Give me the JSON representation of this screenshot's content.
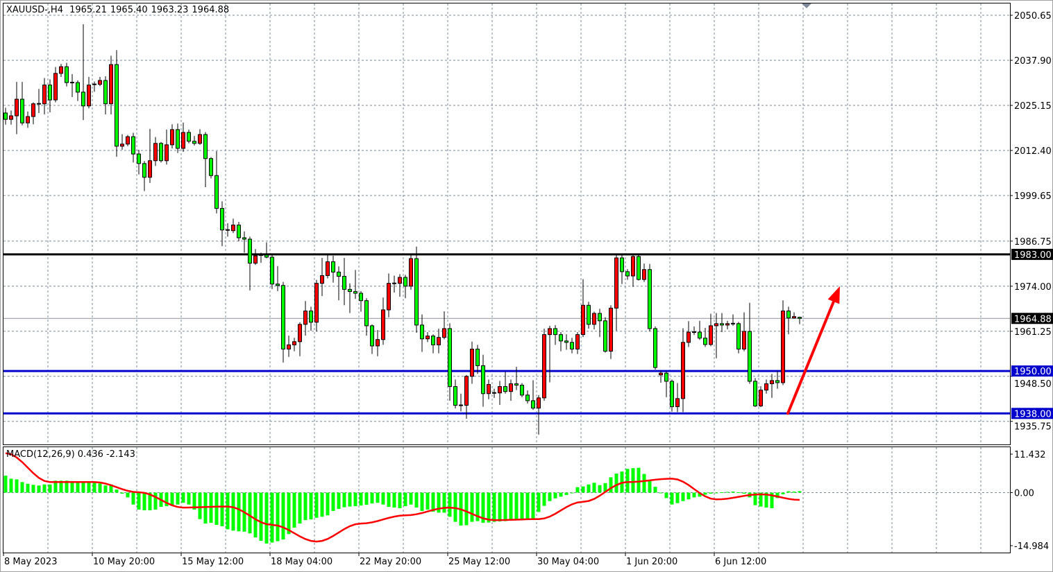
{
  "header": {
    "symbol": "XAUUSD-,H4",
    "open": "1965.21",
    "high": "1965.40",
    "low": "1963.23",
    "close": "1964.88"
  },
  "macd_header": {
    "label": "MACD(12,26,9)",
    "main": "0.436",
    "signal": "-2.143"
  },
  "colors": {
    "bull_candle": "#ff0000",
    "bear_candle": "#00ff00",
    "histogram": "#00ff00",
    "signal_line": "#ff0000",
    "resistance_line": "#000000",
    "support_line": "#0000cc",
    "arrow": "#ff0000",
    "grid": "#778899"
  },
  "chart_data": [
    {
      "type": "candlestick",
      "title": "",
      "ylim": [
        1929.2,
        2054.0
      ],
      "grid": true,
      "price_ticks": [
        "2050.65",
        "2037.90",
        "2025.15",
        "2012.40",
        "1999.65",
        "1986.75",
        "1974.00",
        "1961.25",
        "1948.50",
        "1935.75"
      ],
      "time_ticks": [
        "8 May 2023",
        "10 May 20:00",
        "15 May 12:00",
        "18 May 04:00",
        "22 May 20:00",
        "25 May 12:00",
        "30 May 04:00",
        "1 Jun 20:00",
        "6 Jun 12:00"
      ],
      "horizontal_lines": [
        {
          "price": 1983.0,
          "label": "1983.00",
          "color": "#000000"
        },
        {
          "price": 1950.0,
          "label": "1950.00",
          "color": "#0000cc"
        },
        {
          "price": 1938.0,
          "label": "1938.00",
          "color": "#0000cc"
        }
      ],
      "current_price": {
        "price": 1964.88,
        "label": "1964.88"
      },
      "arrow": {
        "from_bar": 141,
        "from_price": 1938.0,
        "to_bar": 150,
        "to_price": 1974.0,
        "color": "#ff0000"
      },
      "candles_ohlc": [
        [
          2023.0,
          2024.5,
          2019.7,
          2021.2
        ],
        [
          2021.2,
          2023.7,
          2019.7,
          2022.2
        ],
        [
          2022.2,
          2031.8,
          2017.0,
          2026.9
        ],
        [
          2026.9,
          2031.8,
          2019.5,
          2020.2
        ],
        [
          2020.2,
          2023.4,
          2018.8,
          2022.0
        ],
        [
          2022.0,
          2026.0,
          2019.8,
          2025.6
        ],
        [
          2025.6,
          2029.8,
          2023.0,
          2025.6
        ],
        [
          2025.6,
          2032.9,
          2022.6,
          2030.9
        ],
        [
          2030.9,
          2032.5,
          2023.2,
          2026.7
        ],
        [
          2026.7,
          2036.0,
          2026.0,
          2034.2
        ],
        [
          2034.2,
          2036.9,
          2033.2,
          2036.1
        ],
        [
          2036.1,
          2037.2,
          2030.5,
          2031.6
        ],
        [
          2031.6,
          2034.0,
          2027.5,
          2031.6
        ],
        [
          2031.6,
          2032.2,
          2026.4,
          2028.9
        ],
        [
          2028.9,
          2048.1,
          2021.0,
          2025.0
        ],
        [
          2025.0,
          2033.2,
          2024.3,
          2030.9
        ],
        [
          2030.9,
          2031.9,
          2029.0,
          2031.1
        ],
        [
          2031.1,
          2033.2,
          2030.6,
          2032.2
        ],
        [
          2032.2,
          2033.4,
          2022.6,
          2025.6
        ],
        [
          2025.6,
          2039.2,
          2022.6,
          2036.7
        ],
        [
          2036.7,
          2040.8,
          2010.6,
          2013.6
        ],
        [
          2013.6,
          2017.0,
          2012.6,
          2014.2
        ],
        [
          2014.2,
          2016.8,
          2013.6,
          2016.3
        ],
        [
          2016.3,
          2017.4,
          2009.0,
          2011.4
        ],
        [
          2011.4,
          2012.6,
          2005.6,
          2008.7
        ],
        [
          2008.7,
          2009.4,
          2000.9,
          2004.8
        ],
        [
          2004.8,
          2018.5,
          2003.2,
          2009.5
        ],
        [
          2009.5,
          2016.2,
          2008.0,
          2014.4
        ],
        [
          2014.4,
          2014.8,
          2009.0,
          2009.5
        ],
        [
          2009.5,
          2018.3,
          2008.4,
          2014.0
        ],
        [
          2014.0,
          2019.8,
          2013.0,
          2018.3
        ],
        [
          2018.3,
          2020.0,
          2011.7,
          2013.0
        ],
        [
          2013.0,
          2020.3,
          2012.0,
          2017.5
        ],
        [
          2017.5,
          2018.3,
          2014.4,
          2015.0
        ],
        [
          2015.0,
          2016.5,
          2013.8,
          2014.4
        ],
        [
          2014.4,
          2018.4,
          2014.0,
          2016.9
        ],
        [
          2016.9,
          2017.6,
          2002.0,
          2010.1
        ],
        [
          2010.1,
          2010.5,
          2004.5,
          2005.3
        ],
        [
          2005.3,
          2012.2,
          1994.6,
          1996.0
        ],
        [
          1996.0,
          1998.0,
          1985.3,
          1989.9
        ],
        [
          1989.9,
          1991.8,
          1988.0,
          1989.7
        ],
        [
          1989.7,
          1993.1,
          1989.0,
          1991.3
        ],
        [
          1991.3,
          1992.2,
          1986.7,
          1987.7
        ],
        [
          1987.7,
          1989.5,
          1983.5,
          1987.3
        ],
        [
          1987.3,
          1988.0,
          1972.8,
          1980.5
        ],
        [
          1980.5,
          1984.5,
          1980.0,
          1982.6
        ],
        [
          1982.8,
          1983.5,
          1980.6,
          1982.8
        ],
        [
          1982.8,
          1986.4,
          1981.9,
          1982.2
        ],
        [
          1982.2,
          1983.0,
          1973.2,
          1974.6
        ],
        [
          1974.6,
          1979.7,
          1972.6,
          1974.2
        ],
        [
          1974.2,
          1975.2,
          1952.4,
          1956.2
        ],
        [
          1956.2,
          1960.0,
          1954.0,
          1957.4
        ],
        [
          1957.4,
          1959.4,
          1955.6,
          1958.3
        ],
        [
          1958.3,
          1963.8,
          1954.2,
          1963.2
        ],
        [
          1963.2,
          1969.8,
          1960.0,
          1967.0
        ],
        [
          1967.0,
          1968.2,
          1961.4,
          1963.8
        ],
        [
          1963.8,
          1975.8,
          1961.2,
          1974.8
        ],
        [
          1974.8,
          1982.0,
          1971.2,
          1977.0
        ],
        [
          1977.0,
          1982.9,
          1976.2,
          1980.9
        ],
        [
          1980.9,
          1982.6,
          1975.0,
          1978.0
        ],
        [
          1978.0,
          1979.6,
          1970.0,
          1976.8
        ],
        [
          1976.8,
          1982.0,
          1968.6,
          1973.1
        ],
        [
          1973.1,
          1974.8,
          1966.4,
          1972.5
        ],
        [
          1972.5,
          1978.6,
          1970.4,
          1972.0
        ],
        [
          1972.0,
          1972.6,
          1966.8,
          1969.9
        ],
        [
          1969.9,
          1970.6,
          1960.0,
          1962.8
        ],
        [
          1962.8,
          1963.2,
          1954.8,
          1957.1
        ],
        [
          1957.1,
          1961.6,
          1954.2,
          1958.9
        ],
        [
          1958.9,
          1970.8,
          1957.4,
          1967.3
        ],
        [
          1967.3,
          1977.6,
          1965.2,
          1974.8
        ],
        [
          1974.8,
          1977.0,
          1972.2,
          1974.8
        ],
        [
          1974.8,
          1977.4,
          1971.0,
          1976.5
        ],
        [
          1976.5,
          1977.2,
          1970.6,
          1974.0
        ],
        [
          1974.0,
          1983.2,
          1973.0,
          1981.8
        ],
        [
          1981.8,
          1985.2,
          1960.8,
          1963.0
        ],
        [
          1963.0,
          1966.0,
          1955.4,
          1959.1
        ],
        [
          1959.1,
          1961.0,
          1958.2,
          1959.9
        ],
        [
          1959.9,
          1960.4,
          1955.0,
          1957.4
        ],
        [
          1957.4,
          1962.0,
          1955.0,
          1959.5
        ],
        [
          1959.5,
          1966.9,
          1959.0,
          1962.0
        ],
        [
          1962.0,
          1963.5,
          1941.6,
          1945.6
        ],
        [
          1945.6,
          1947.6,
          1939.4,
          1940.3
        ],
        [
          1940.3,
          1943.6,
          1938.6,
          1940.3
        ],
        [
          1940.3,
          1948.9,
          1936.5,
          1948.5
        ],
        [
          1948.5,
          1958.3,
          1946.4,
          1956.2
        ],
        [
          1956.2,
          1957.4,
          1949.2,
          1951.5
        ],
        [
          1951.5,
          1954.6,
          1939.9,
          1943.6
        ],
        [
          1943.6,
          1947.6,
          1942.0,
          1946.2
        ],
        [
          1943.8,
          1945.0,
          1942.4,
          1943.8
        ],
        [
          1943.8,
          1947.2,
          1940.4,
          1945.6
        ],
        [
          1945.6,
          1949.8,
          1943.6,
          1944.2
        ],
        [
          1944.2,
          1947.6,
          1941.6,
          1946.4
        ],
        [
          1946.4,
          1951.2,
          1944.6,
          1946.0
        ],
        [
          1946.0,
          1946.6,
          1942.6,
          1943.2
        ],
        [
          1943.2,
          1944.5,
          1940.8,
          1941.6
        ],
        [
          1941.6,
          1947.4,
          1939.0,
          1939.5
        ],
        [
          1939.5,
          1943.2,
          1932.0,
          1942.4
        ],
        [
          1942.4,
          1962.0,
          1941.6,
          1960.3
        ],
        [
          1960.3,
          1962.8,
          1946.8,
          1962.0
        ],
        [
          1962.0,
          1963.0,
          1957.4,
          1960.3
        ],
        [
          1960.3,
          1961.0,
          1955.6,
          1958.5
        ],
        [
          1958.5,
          1960.4,
          1956.0,
          1958.1
        ],
        [
          1958.1,
          1959.4,
          1955.0,
          1956.2
        ],
        [
          1956.2,
          1961.0,
          1954.8,
          1960.3
        ],
        [
          1960.3,
          1976.0,
          1959.6,
          1968.6
        ],
        [
          1968.6,
          1969.6,
          1962.0,
          1963.2
        ],
        [
          1963.2,
          1966.8,
          1961.8,
          1966.3
        ],
        [
          1966.3,
          1967.6,
          1959.6,
          1964.2
        ],
        [
          1964.2,
          1965.2,
          1955.2,
          1955.6
        ],
        [
          1955.6,
          1968.6,
          1953.4,
          1967.8
        ],
        [
          1967.8,
          1983.2,
          1961.4,
          1982.0
        ],
        [
          1982.0,
          1983.2,
          1974.6,
          1978.1
        ],
        [
          1978.1,
          1978.8,
          1975.8,
          1976.9
        ],
        [
          1976.9,
          1983.0,
          1973.8,
          1982.4
        ],
        [
          1982.4,
          1983.0,
          1975.6,
          1975.9
        ],
        [
          1975.9,
          1980.4,
          1975.2,
          1978.7
        ],
        [
          1978.7,
          1980.3,
          1961.2,
          1962.0
        ],
        [
          1962.0,
          1962.6,
          1950.4,
          1951.0
        ],
        [
          1948.9,
          1950.0,
          1946.7,
          1949.4
        ],
        [
          1949.4,
          1950.0,
          1942.6,
          1947.1
        ],
        [
          1947.1,
          1947.6,
          1938.5,
          1939.9
        ],
        [
          1939.9,
          1946.6,
          1938.4,
          1942.2
        ],
        [
          1942.2,
          1962.1,
          1938.4,
          1958.1
        ],
        [
          1958.1,
          1964.1,
          1956.8,
          1961.0
        ],
        [
          1961.0,
          1962.6,
          1960.2,
          1961.0
        ],
        [
          1961.0,
          1964.2,
          1958.8,
          1959.3
        ],
        [
          1959.3,
          1962.2,
          1956.8,
          1957.5
        ],
        [
          1957.5,
          1966.2,
          1957.0,
          1962.8
        ],
        [
          1962.8,
          1966.4,
          1953.6,
          1963.4
        ],
        [
          1963.4,
          1966.4,
          1961.0,
          1963.0
        ],
        [
          1963.0,
          1964.2,
          1961.8,
          1963.4
        ],
        [
          1963.4,
          1966.0,
          1962.8,
          1963.4
        ],
        [
          1963.4,
          1963.9,
          1955.0,
          1956.2
        ],
        [
          1956.2,
          1966.6,
          1955.6,
          1961.2
        ],
        [
          1961.2,
          1969.3,
          1946.4,
          1947.1
        ],
        [
          1947.1,
          1948.0,
          1939.8,
          1940.1
        ],
        [
          1940.1,
          1945.7,
          1939.8,
          1944.6
        ],
        [
          1944.6,
          1947.6,
          1943.6,
          1946.4
        ],
        [
          1946.4,
          1949.2,
          1942.4,
          1947.3
        ],
        [
          1947.3,
          1950.0,
          1945.0,
          1946.7
        ],
        [
          1946.7,
          1970.0,
          1946.0,
          1967.0
        ],
        [
          1967.0,
          1968.2,
          1960.4,
          1965.0
        ],
        [
          1965.0,
          1966.6,
          1964.8,
          1965.4
        ],
        [
          1965.21,
          1965.4,
          1963.23,
          1964.88
        ]
      ]
    },
    {
      "type": "bar+line",
      "title": "MACD(12,26,9)",
      "ylim": [
        -14.984,
        11.432
      ],
      "ticks": [
        "11.432",
        "0.00",
        "-14.984"
      ],
      "histogram": [
        5.0,
        4.1,
        3.9,
        3.1,
        2.6,
        2.3,
        2.1,
        2.4,
        2.4,
        3.5,
        3.5,
        3.5,
        3.4,
        3.3,
        3.1,
        3.1,
        2.9,
        2.7,
        2.1,
        2.4,
        0.9,
        -0.3,
        -1.4,
        -3.5,
        -5.0,
        -5.2,
        -5.2,
        -5.0,
        -4.2,
        -4.0,
        -3.9,
        -3.5,
        -3.0,
        -3.5,
        -5.0,
        -7.8,
        -9.1,
        -8.9,
        -9.5,
        -9.9,
        -10.8,
        -11.2,
        -11.4,
        -11.5,
        -12.0,
        -13.2,
        -14.2,
        -14.98,
        -14.7,
        -14.3,
        -13.8,
        -12.2,
        -10.3,
        -9.1,
        -8.1,
        -7.9,
        -7.4,
        -7.1,
        -6.7,
        -5.4,
        -4.8,
        -4.3,
        -4.1,
        -4.0,
        -3.8,
        -3.6,
        -3.2,
        -3.0,
        -3.5,
        -4.2,
        -4.4,
        -4.6,
        -4.0,
        -3.5,
        -4.4,
        -5.4,
        -5.0,
        -5.6,
        -5.9,
        -5.9,
        -7.1,
        -8.6,
        -9.7,
        -9.6,
        -8.6,
        -8.4,
        -8.9,
        -8.8,
        -8.6,
        -8.5,
        -8.4,
        -8.1,
        -7.9,
        -7.8,
        -7.8,
        -8.0,
        -5.7,
        -3.9,
        -2.5,
        -1.7,
        -1.2,
        -0.7,
        -0.1,
        1.6,
        1.8,
        2.4,
        2.9,
        2.2,
        2.8,
        4.5,
        5.6,
        6.2,
        7.0,
        7.2,
        7.3,
        5.5,
        3.6,
        1.7,
        -0.2,
        -1.6,
        -3.5,
        -3.1,
        -2.5,
        -2.0,
        -1.4,
        -1.2,
        -0.6,
        -0.3,
        -0.1,
        0.1,
        0.2,
        0.3,
        0.1,
        -0.3,
        -1.4,
        -3.7,
        -4.1,
        -4.4,
        -4.6,
        -1.6,
        -0.5,
        0.4,
        0.3,
        0.436
      ],
      "signal_keypoints": [
        {
          "bar": 0,
          "value": 11.6
        },
        {
          "bar": 8,
          "value": 3.1
        },
        {
          "bar": 16,
          "value": 3.1
        },
        {
          "bar": 24,
          "value": 0.1
        },
        {
          "bar": 32,
          "value": -4.4
        },
        {
          "bar": 40,
          "value": -4.1
        },
        {
          "bar": 48,
          "value": -9.5
        },
        {
          "bar": 56,
          "value": -14.4
        },
        {
          "bar": 64,
          "value": -9.1
        },
        {
          "bar": 72,
          "value": -6.7
        },
        {
          "bar": 80,
          "value": -4.4
        },
        {
          "bar": 88,
          "value": -8.1
        },
        {
          "bar": 96,
          "value": -7.8
        },
        {
          "bar": 104,
          "value": -2.7
        },
        {
          "bar": 112,
          "value": 3.1
        },
        {
          "bar": 120,
          "value": 4.1
        },
        {
          "bar": 128,
          "value": -2.0
        },
        {
          "bar": 136,
          "value": -0.5
        },
        {
          "bar": 143,
          "value": -2.143
        }
      ]
    }
  ]
}
